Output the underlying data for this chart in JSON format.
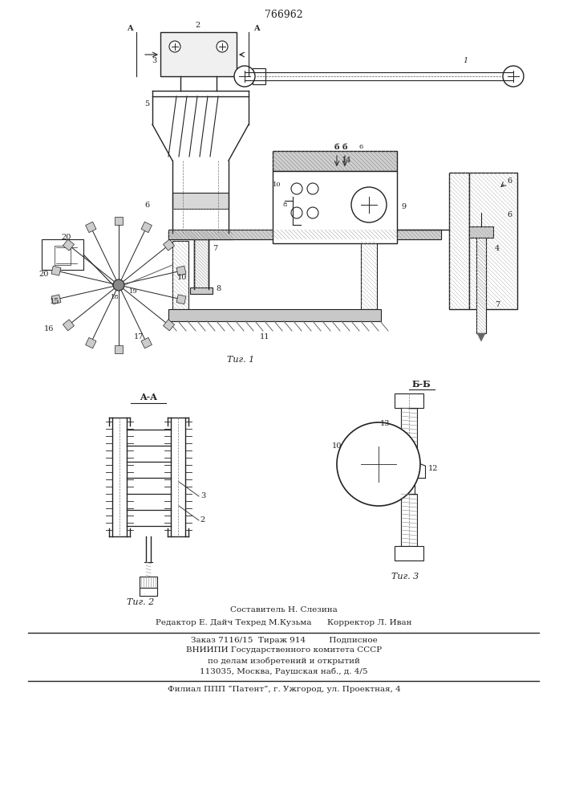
{
  "patent_number": "766962",
  "fig1_label": "Τиг. 1",
  "fig2_label": "Τиг. 2",
  "fig3_label": "Τиг. 3",
  "section_aa": "A-A",
  "section_bb": "Б-Б",
  "text_sostavitel": "Составитель Н. Слезина",
  "text_redaktor": "Редактор Е. Дайч Техред М.Кузьма      Корректор Л. Иван",
  "text_zakaz": "Заказ 7116/15  Тираж 914         Подписное",
  "text_vniiipi": "ВНИИПИ Государственного комитета СССР",
  "text_podelamizobr": "по делам изобретений и открытий",
  "text_address": "113035, Москва, Раушская наб., д. 4/5",
  "text_filial": "Филиал ППП “Патент”, г. Ужгород, ул. Проектная, 4",
  "bg_color": "#ffffff",
  "line_color": "#222222"
}
